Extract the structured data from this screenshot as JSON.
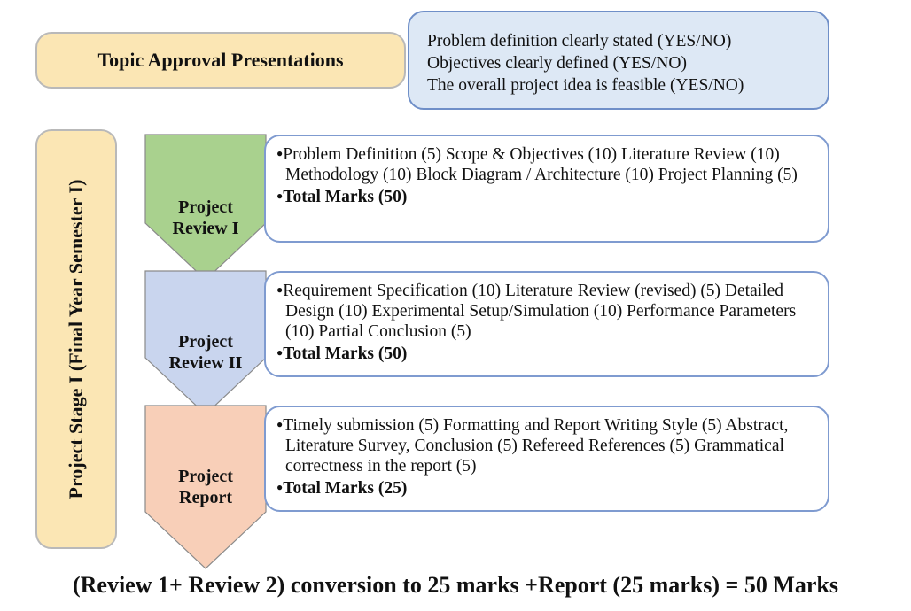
{
  "topic_approval": {
    "title": "Topic Approval Presentations"
  },
  "approval_criteria": [
    "Problem definition  clearly stated (YES/NO)",
    "Objectives clearly defined (YES/NO)",
    "The overall project idea is feasible (YES/NO)"
  ],
  "stage": {
    "label": "Project  Stage I (Final Year Semester I)"
  },
  "reviews": [
    {
      "line1": "Project",
      "line2": "Review I",
      "color": "#a9d18e",
      "items": "Problem Definition  (5) Scope & Objectives (10) Literature Review (10) Methodology  (10) Block Diagram / Architecture (10) Project Planning  (5)",
      "total": "Total Marks (50)"
    },
    {
      "line1": "Project",
      "line2": "Review II",
      "color": "#c9d5ee",
      "items": "Requirement Specification  (10) Literature Review (revised) (5) Detailed Design  (10) Experimental Setup/Simulation  (10) Performance Parameters (10) Partial Conclusion  (5)",
      "total": "Total Marks (50)"
    },
    {
      "line1": "Project",
      "line2": "Report",
      "color": "#f8cfb8",
      "items": "Timely  submission  (5) Formatting  and  Report Writing Style (5) Abstract, Literature Survey, Conclusion  (5) Refereed References (5) Grammatical correctness in the report (5)",
      "total": "Total Marks (25)"
    }
  ],
  "footer": "(Review 1+ Review 2) conversion to 25 marks +Report (25 marks) = 50 Marks"
}
